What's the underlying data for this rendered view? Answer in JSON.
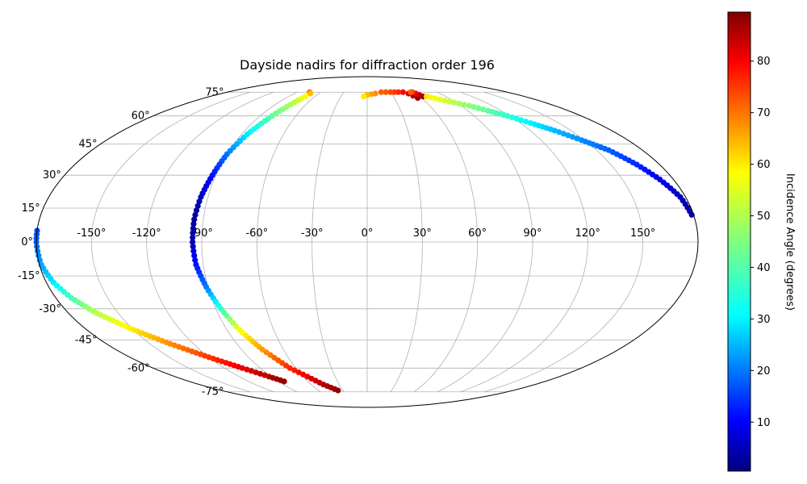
{
  "chart_data": {
    "type": "scatter",
    "projection": "mollweide",
    "title": "Dayside nadirs for diffraction order 196",
    "grid": true,
    "lon_ticks": [
      -150,
      -120,
      -90,
      -60,
      -30,
      0,
      30,
      60,
      90,
      120,
      150
    ],
    "lat_ticks": [
      -75,
      -60,
      -45,
      -30,
      -15,
      0,
      15,
      30,
      45,
      60,
      75
    ],
    "lon_tick_labels": [
      "-150°",
      "-120°",
      "-90°",
      "-60°",
      "-30°",
      "0°",
      "30°",
      "60°",
      "90°",
      "120°",
      "150°"
    ],
    "lat_tick_labels": [
      "-75°",
      "-60°",
      "-45°",
      "-30°",
      "-15°",
      "0°",
      "15°",
      "30°",
      "45°",
      "60°",
      "75°"
    ],
    "colorbar": {
      "label": "Incidence Angle (degrees)",
      "colormap": "jet",
      "range": [
        0.5,
        89.5
      ],
      "ticks": [
        10,
        20,
        30,
        40,
        50,
        60,
        70,
        80
      ],
      "tick_labels": [
        "10",
        "20",
        "30",
        "40",
        "50",
        "60",
        "70",
        "80"
      ]
    },
    "series": [
      {
        "points": [
          [
            -74,
            75,
            68
          ],
          [
            -70,
            74,
            62
          ],
          [
            -71,
            72,
            56
          ],
          [
            -74,
            68,
            50
          ],
          [
            -80,
            60,
            42
          ],
          [
            -86,
            50,
            32
          ],
          [
            -90,
            40,
            22
          ],
          [
            -92,
            30,
            13
          ],
          [
            -94,
            20,
            6
          ],
          [
            -95,
            10,
            3
          ],
          [
            -95,
            0,
            5
          ],
          [
            -94,
            -10,
            13
          ],
          [
            -91,
            -20,
            22
          ],
          [
            -87,
            -30,
            38
          ],
          [
            -82,
            -40,
            55
          ],
          [
            -75,
            -50,
            65
          ],
          [
            -65,
            -60,
            75
          ],
          [
            -47,
            -70,
            85
          ],
          [
            -36,
            -74,
            88
          ]
        ]
      },
      {
        "points": [
          [
            -180,
            5,
            18
          ],
          [
            -180,
            0,
            20
          ],
          [
            -179,
            -10,
            26
          ],
          [
            -176,
            -18,
            32
          ],
          [
            -171,
            -25,
            40
          ],
          [
            -163,
            -32,
            50
          ],
          [
            -150,
            -40,
            58
          ],
          [
            -136,
            -47,
            66
          ],
          [
            -120,
            -54,
            74
          ],
          [
            -105,
            -60,
            80
          ],
          [
            -92,
            -65,
            85
          ],
          [
            -84,
            -68,
            88
          ]
        ]
      },
      {
        "points": [
          [
            56,
            71,
            88
          ],
          [
            51,
            74,
            82
          ],
          [
            46,
            75,
            78
          ],
          [
            40,
            75,
            75
          ],
          [
            30,
            75,
            72
          ],
          [
            18,
            75,
            70
          ],
          [
            10,
            74,
            66
          ],
          [
            0,
            73,
            62
          ],
          [
            -4,
            72,
            58
          ]
        ]
      },
      {
        "points": [
          [
            64,
            72,
            88
          ],
          [
            60,
            74,
            80
          ],
          [
            58,
            75,
            74
          ],
          [
            56,
            75,
            70
          ]
        ]
      },
      {
        "points": [
          [
            68,
            72,
            58
          ],
          [
            78,
            70,
            54
          ],
          [
            88,
            68,
            50
          ],
          [
            98,
            66,
            46
          ],
          [
            108,
            63,
            42
          ],
          [
            118,
            60,
            38
          ],
          [
            128,
            56,
            33
          ],
          [
            138,
            52,
            28
          ],
          [
            148,
            47,
            24
          ],
          [
            158,
            42,
            20
          ],
          [
            166,
            35,
            15
          ],
          [
            172,
            28,
            10
          ],
          [
            177,
            20,
            6
          ],
          [
            179,
            12,
            5
          ]
        ]
      }
    ]
  }
}
